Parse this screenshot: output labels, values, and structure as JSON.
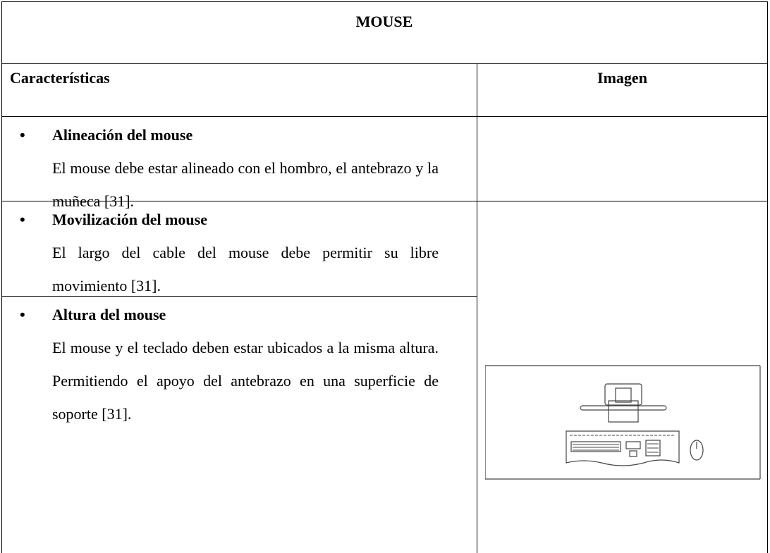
{
  "table": {
    "title": "MOUSE",
    "headers": [
      "Características",
      "Imagen"
    ],
    "rows": [
      {
        "heading": "Alineación del mouse",
        "text": "El mouse debe estar alineado con el hombro, el antebrazo y la muñeca [31]."
      },
      {
        "heading": "Movilización del mouse",
        "text": "El largo del cable del mouse debe permitir su libre movimiento [31]."
      },
      {
        "heading": "Altura del mouse",
        "text": "El mouse y el teclado deben estar ubicados a la misma altura. Permitiendo el apoyo del antebrazo en una superficie de soporte [31]."
      }
    ]
  }
}
